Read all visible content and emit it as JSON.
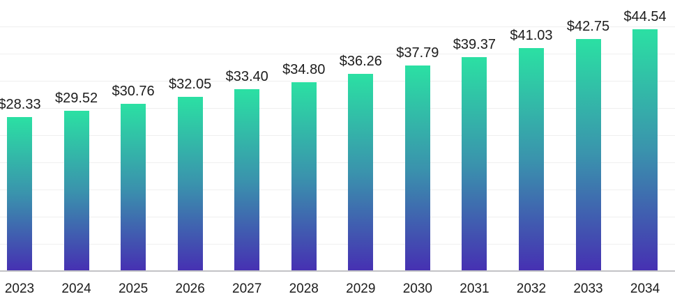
{
  "chart_data": {
    "type": "bar",
    "title": "",
    "xlabel": "",
    "ylabel": "",
    "categories": [
      "2023",
      "2024",
      "2025",
      "2026",
      "2027",
      "2028",
      "2029",
      "2030",
      "2031",
      "2032",
      "2033",
      "2034"
    ],
    "values": [
      28.33,
      29.52,
      30.76,
      32.05,
      33.4,
      34.8,
      36.26,
      37.79,
      39.37,
      41.03,
      42.75,
      44.54
    ],
    "value_labels": [
      "$28.33",
      "$29.52",
      "$30.76",
      "$32.05",
      "$33.40",
      "$34.80",
      "$36.26",
      "$37.79",
      "$39.37",
      "$41.03",
      "$42.75",
      "$44.54"
    ],
    "ylim": [
      0,
      45
    ],
    "gridline_step": 5,
    "grid": true,
    "legend": false,
    "colors": {
      "bar_gradient_top": "#2be0a3",
      "bar_gradient_mid": "#3a93ad",
      "bar_gradient_bottom": "#4630b2",
      "gridline": "#efefef",
      "axis_line": "#c2c2c6",
      "label_text": "#1c1c1c",
      "background": "#ffffff"
    }
  }
}
